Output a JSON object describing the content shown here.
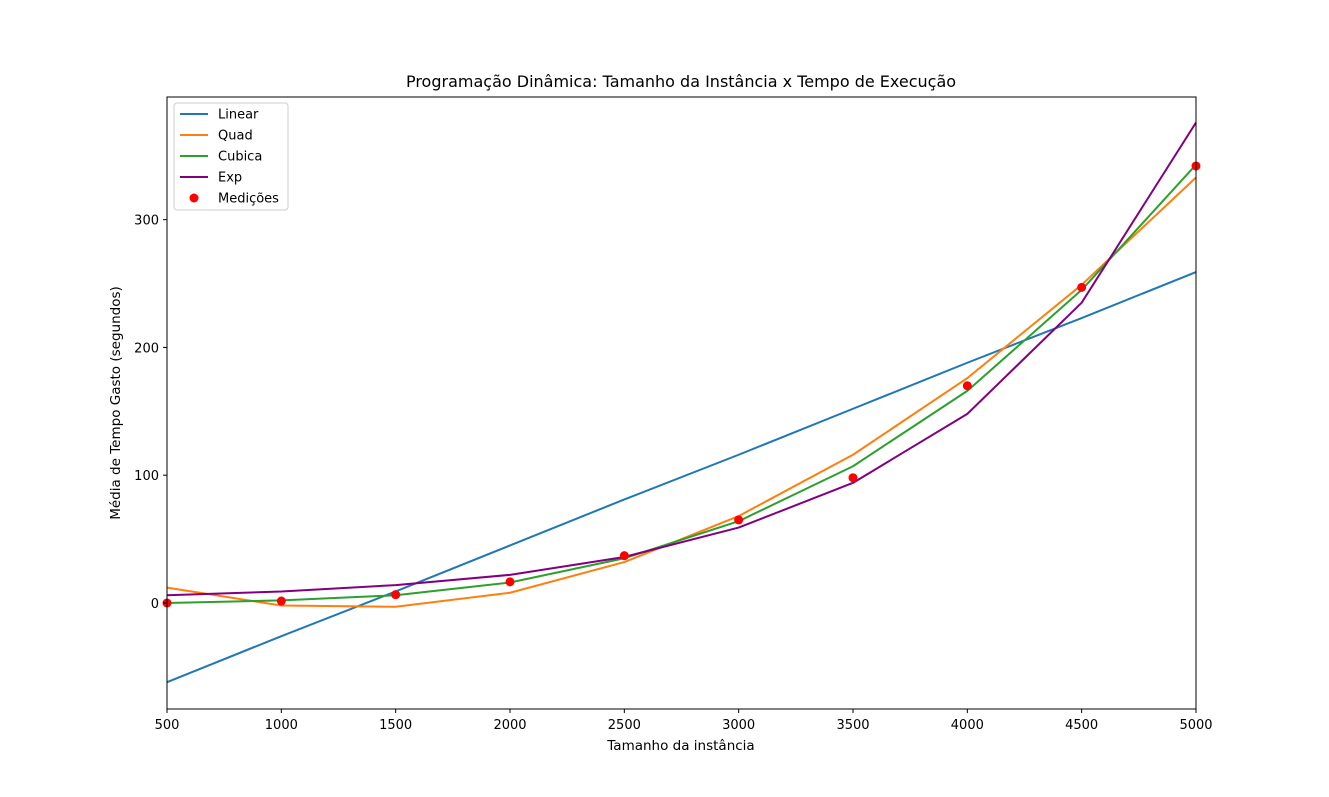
{
  "chart_data": {
    "type": "line",
    "title": "Programação Dinâmica: Tamanho da Instância x Tempo de Execução",
    "xlabel": "Tamanho da instância",
    "ylabel": "Média de Tempo Gasto (segundos)",
    "xlim": [
      500,
      5000
    ],
    "ylim": [
      -83,
      396
    ],
    "x_ticks": [
      500,
      1000,
      1500,
      2000,
      2500,
      3000,
      3500,
      4000,
      4500,
      5000
    ],
    "y_ticks": [
      0,
      100,
      200,
      300
    ],
    "x": [
      500,
      1000,
      1500,
      2000,
      2500,
      3000,
      3500,
      4000,
      4500,
      5000
    ],
    "series": [
      {
        "name": "Linear",
        "kind": "line",
        "color": "#1f77b4",
        "values": [
          -62,
          -26,
          9,
          45,
          81,
          116,
          152,
          188,
          223,
          259
        ]
      },
      {
        "name": "Quad",
        "kind": "line",
        "color": "#ff7f0e",
        "values": [
          12,
          -2,
          -3,
          8,
          32,
          68,
          116,
          176,
          249,
          333
        ]
      },
      {
        "name": "Cubica",
        "kind": "line",
        "color": "#2ca02c",
        "values": [
          0,
          2,
          6,
          16,
          35,
          64,
          107,
          166,
          245,
          343
        ]
      },
      {
        "name": "Exp",
        "kind": "line",
        "color": "#800080",
        "values": [
          6,
          9,
          14,
          22,
          36,
          59,
          94,
          148,
          235,
          376
        ]
      },
      {
        "name": "Medições",
        "kind": "scatter",
        "color": "#ff0000",
        "values": [
          0,
          1.5,
          6.5,
          16.5,
          37,
          65,
          98,
          170,
          247,
          342
        ]
      }
    ],
    "legend_position": "upper-left"
  }
}
